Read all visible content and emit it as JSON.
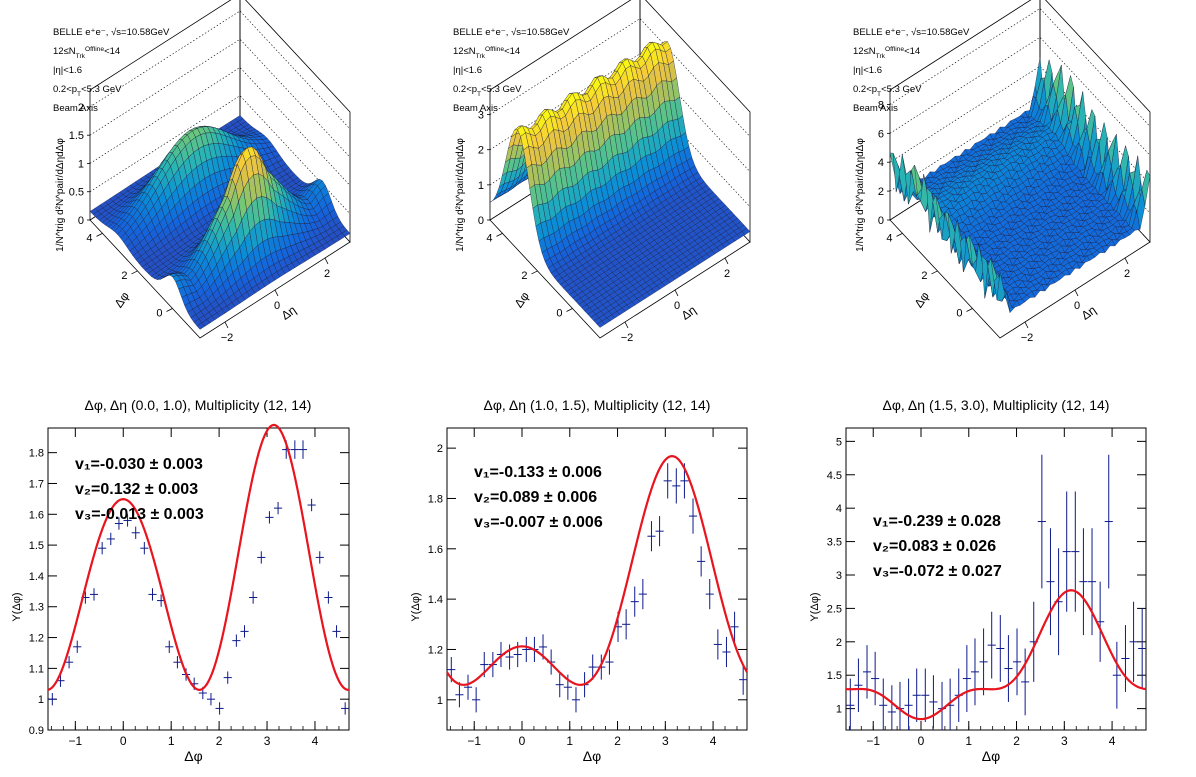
{
  "figure": {
    "surface_panels": [
      {
        "info": [
          "BELLE e⁺e⁻, √s=10.58GeV",
          "12≤N_Trk^Offline<14",
          "|η|<1.6",
          "0.2<p_T<5.3 GeV",
          "Beam Axis"
        ],
        "z_label": "1/N^trig d²N^pair/dΔηdΔφ",
        "phi_label": "Δφ",
        "eta_label": "Δη",
        "z_ticks": [
          "0",
          "0.5",
          "1",
          "1.5",
          "2"
        ],
        "phi_ticks": [
          "0",
          "2",
          "4"
        ],
        "eta_ticks": [
          "−2",
          "0",
          "2"
        ],
        "z_max": 2.3,
        "shape": "double-ridge"
      },
      {
        "info": [
          "BELLE e⁺e⁻, √s=10.58GeV",
          "12≤N_Trk^Offline<14",
          "|η|<1.6",
          "0.2<p_T<5.3 GeV",
          "Beam Axis"
        ],
        "z_label": "1/N^trig d²N^pair/dΔηdΔφ",
        "phi_label": "Δφ",
        "eta_label": "Δη",
        "z_ticks": [
          "0",
          "1",
          "2",
          "3"
        ],
        "phi_ticks": [
          "0",
          "2",
          "4"
        ],
        "eta_ticks": [
          "−2",
          "0",
          "2"
        ],
        "z_max": 3.7,
        "shape": "away-ridge"
      },
      {
        "info": [
          "BELLE e⁺e⁻, √s=10.58GeV",
          "12≤N_Trk^Offline<14",
          "|η|<1.6",
          "0.2<p_T<5.3 GeV",
          "Beam Axis"
        ],
        "z_label": "1/N^trig d²N^pair/dΔηdΔφ",
        "phi_label": "Δφ",
        "eta_label": "Δη",
        "z_ticks": [
          "0",
          "2",
          "4",
          "6",
          "8"
        ],
        "phi_ticks": [
          "0",
          "2",
          "4"
        ],
        "eta_ticks": [
          "−2",
          "0",
          "2"
        ],
        "z_max": 9.0,
        "shape": "spiky"
      }
    ]
  },
  "chart_data": [
    {
      "type": "scatter",
      "title": "Δφ, Δη (0.0, 1.0), Multiplicity (12, 14)",
      "xlabel": "Δφ",
      "ylabel": "Y(Δφ)",
      "xlim": [
        -1.57,
        4.71
      ],
      "ylim": [
        0.9,
        1.88
      ],
      "x_ticks": [
        -1,
        0,
        1,
        2,
        3,
        4
      ],
      "y_ticks": [
        0.9,
        1.0,
        1.1,
        1.2,
        1.3,
        1.4,
        1.5,
        1.6,
        1.7,
        1.8
      ],
      "y_tick_labels": [
        "0.9",
        "1",
        "1.1",
        "1.2",
        "1.3",
        "1.4",
        "1.5",
        "1.6",
        "1.7",
        "1.8"
      ],
      "x_tick_labels": [
        "−1",
        "0",
        "1",
        "2",
        "3",
        "4"
      ],
      "fit": {
        "a0": 1.4,
        "v1": -0.03,
        "v2": 0.132,
        "v3": -0.013
      },
      "fit_labels": [
        "v₁=-0.030 ± 0.003",
        "v₂=0.132 ± 0.003",
        "v₃=-0.013 ± 0.003"
      ],
      "x": [
        -1.48,
        -1.31,
        -1.13,
        -0.96,
        -0.79,
        -0.61,
        -0.44,
        -0.26,
        -0.09,
        0.09,
        0.26,
        0.44,
        0.61,
        0.79,
        0.96,
        1.13,
        1.31,
        1.48,
        1.66,
        1.83,
        2.01,
        2.18,
        2.36,
        2.53,
        2.71,
        2.88,
        3.05,
        3.23,
        3.4,
        3.58,
        3.75,
        3.93,
        4.1,
        4.28,
        4.45,
        4.63
      ],
      "y": [
        1.0,
        1.06,
        1.12,
        1.17,
        1.33,
        1.34,
        1.49,
        1.52,
        1.57,
        1.58,
        1.54,
        1.49,
        1.34,
        1.32,
        1.17,
        1.12,
        1.08,
        1.05,
        1.02,
        1.0,
        0.97,
        1.07,
        1.19,
        1.22,
        1.33,
        1.46,
        1.59,
        1.62,
        1.81,
        1.81,
        1.81,
        1.63,
        1.46,
        1.33,
        1.22,
        0.97
      ],
      "yerr": [
        0.02,
        0.02,
        0.02,
        0.02,
        0.02,
        0.02,
        0.02,
        0.02,
        0.02,
        0.02,
        0.02,
        0.02,
        0.02,
        0.02,
        0.02,
        0.02,
        0.02,
        0.02,
        0.02,
        0.02,
        0.02,
        0.02,
        0.02,
        0.02,
        0.02,
        0.02,
        0.02,
        0.02,
        0.03,
        0.03,
        0.03,
        0.02,
        0.02,
        0.02,
        0.02,
        0.02
      ]
    },
    {
      "type": "scatter",
      "title": "Δφ, Δη (1.0, 1.5), Multiplicity (12, 14)",
      "xlabel": "Δφ",
      "ylabel": "Y(Δφ)",
      "xlim": [
        -1.57,
        4.71
      ],
      "ylim": [
        0.88,
        2.08
      ],
      "x_ticks": [
        -1,
        0,
        1,
        2,
        3,
        4
      ],
      "y_ticks": [
        1.0,
        1.2,
        1.4,
        1.6,
        1.8,
        2.0
      ],
      "y_tick_labels": [
        "1",
        "1.2",
        "1.4",
        "1.6",
        "1.8",
        "2"
      ],
      "x_tick_labels": [
        "−1",
        "0",
        "1",
        "2",
        "3",
        "4"
      ],
      "fit": {
        "a0": 1.35,
        "v1": -0.133,
        "v2": 0.089,
        "v3": -0.007
      },
      "fit_labels": [
        "v₁=-0.133 ± 0.006",
        "v₂=0.089 ± 0.006",
        "v₃=-0.007 ± 0.006"
      ],
      "x": [
        -1.48,
        -1.31,
        -1.13,
        -0.96,
        -0.79,
        -0.61,
        -0.44,
        -0.26,
        -0.09,
        0.09,
        0.26,
        0.44,
        0.61,
        0.79,
        0.96,
        1.13,
        1.31,
        1.48,
        1.66,
        1.83,
        2.01,
        2.18,
        2.36,
        2.53,
        2.71,
        2.88,
        3.05,
        3.23,
        3.4,
        3.58,
        3.75,
        3.93,
        4.1,
        4.28,
        4.45,
        4.63
      ],
      "y": [
        1.12,
        1.02,
        1.05,
        1.0,
        1.14,
        1.14,
        1.18,
        1.17,
        1.18,
        1.2,
        1.2,
        1.21,
        1.15,
        1.06,
        1.05,
        1.0,
        1.06,
        1.13,
        1.13,
        1.15,
        1.29,
        1.3,
        1.39,
        1.42,
        1.65,
        1.67,
        1.87,
        1.85,
        1.87,
        1.73,
        1.55,
        1.42,
        1.22,
        1.19,
        1.29,
        1.08
      ],
      "yerr": [
        0.05,
        0.05,
        0.05,
        0.05,
        0.05,
        0.05,
        0.05,
        0.05,
        0.05,
        0.05,
        0.05,
        0.05,
        0.05,
        0.05,
        0.05,
        0.05,
        0.05,
        0.05,
        0.05,
        0.05,
        0.06,
        0.06,
        0.06,
        0.06,
        0.06,
        0.06,
        0.07,
        0.07,
        0.07,
        0.07,
        0.06,
        0.06,
        0.06,
        0.06,
        0.06,
        0.06
      ]
    },
    {
      "type": "scatter",
      "title": "Δφ, Δη (1.5, 3.0), Multiplicity (12, 14)",
      "xlabel": "Δφ",
      "ylabel": "Y(Δφ)",
      "xlim": [
        -1.57,
        4.71
      ],
      "ylim": [
        0.68,
        5.2
      ],
      "x_ticks": [
        -1,
        0,
        1,
        2,
        3,
        4
      ],
      "y_ticks": [
        1.0,
        1.5,
        2.0,
        2.5,
        3.0,
        3.5,
        4.0,
        4.5,
        5.0
      ],
      "y_tick_labels": [
        "1",
        "1.5",
        "2",
        "2.5",
        "3",
        "3.5",
        "4",
        "4.5",
        "5"
      ],
      "x_tick_labels": [
        "−1",
        "0",
        "1",
        "2",
        "3",
        "4"
      ],
      "fit": {
        "a0": 1.55,
        "v1": -0.239,
        "v2": 0.083,
        "v3": -0.072
      },
      "fit_labels": [
        "v₁=-0.239 ± 0.028",
        "v₂=0.083 ± 0.026",
        "v₃=-0.072 ± 0.027"
      ],
      "x": [
        -1.48,
        -1.31,
        -1.13,
        -0.96,
        -0.79,
        -0.61,
        -0.44,
        -0.26,
        -0.09,
        0.09,
        0.26,
        0.44,
        0.61,
        0.79,
        0.96,
        1.13,
        1.31,
        1.48,
        1.66,
        1.83,
        2.01,
        2.18,
        2.36,
        2.53,
        2.71,
        2.88,
        3.05,
        3.23,
        3.4,
        3.58,
        3.75,
        3.93,
        4.1,
        4.28,
        4.45,
        4.63
      ],
      "y": [
        1.05,
        1.35,
        1.55,
        1.45,
        1.05,
        0.95,
        1.0,
        1.05,
        1.2,
        1.2,
        1.1,
        1.0,
        1.05,
        1.2,
        1.45,
        1.55,
        1.7,
        1.95,
        1.9,
        1.6,
        1.7,
        1.4,
        2.0,
        3.8,
        2.9,
        2.6,
        3.35,
        3.35,
        2.9,
        2.9,
        2.3,
        3.8,
        1.5,
        1.75,
        2.0,
        1.9
      ],
      "yerr": [
        0.4,
        0.4,
        0.4,
        0.4,
        0.4,
        0.4,
        0.4,
        0.4,
        0.4,
        0.4,
        0.4,
        0.4,
        0.4,
        0.4,
        0.5,
        0.5,
        0.5,
        0.5,
        0.5,
        0.5,
        0.5,
        0.5,
        0.6,
        1.0,
        0.8,
        0.8,
        0.9,
        0.9,
        0.8,
        0.8,
        0.6,
        1.0,
        0.5,
        0.5,
        0.6,
        0.6
      ]
    }
  ]
}
